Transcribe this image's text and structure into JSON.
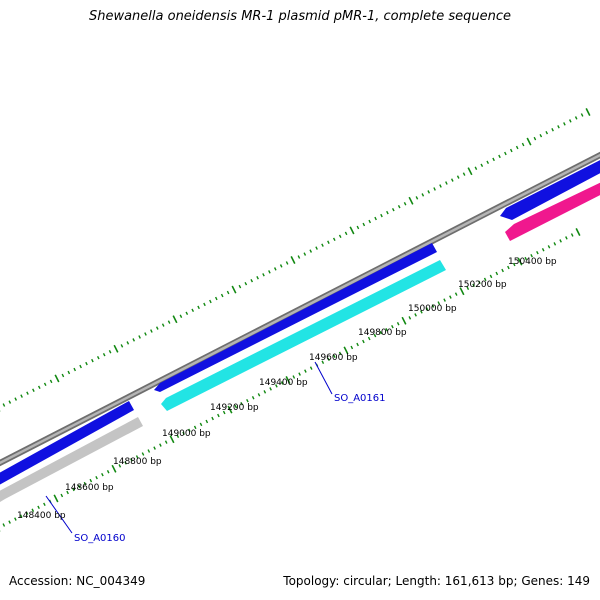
{
  "title": "Shewanella oneidensis MR-1 plasmid pMR-1, complete sequence",
  "footer": {
    "accession": "Accession: NC_004349",
    "stats": "Topology: circular; Length: 161,613 bp; Genes: 149"
  },
  "colors": {
    "backbone": "#8c8c8c",
    "forward_gene": "#1010e0",
    "reverse_gene_cyan": "#22e4e4",
    "reverse_gene_gray": "#c4c4c4",
    "reverse_gene_pink": "#f0188e",
    "tick": "#118811",
    "label": "#0000cc"
  },
  "tick_labels": [
    "148400 bp",
    "148600 bp",
    "148800 bp",
    "149000 bp",
    "149200 bp",
    "149400 bp",
    "149600 bp",
    "149800 bp",
    "150000 bp",
    "150200 bp",
    "150400 bp"
  ],
  "gene_labels": [
    {
      "text": "SO_A0160"
    },
    {
      "text": "SO_A0161"
    }
  ],
  "features": [
    {
      "strand": "forward",
      "color_key": "forward_gene"
    },
    {
      "strand": "reverse",
      "color_key": "reverse_gene_gray"
    },
    {
      "strand": "forward",
      "color_key": "forward_gene"
    },
    {
      "strand": "reverse",
      "color_key": "reverse_gene_cyan"
    },
    {
      "strand": "forward",
      "color_key": "forward_gene"
    },
    {
      "strand": "reverse",
      "color_key": "reverse_gene_pink"
    }
  ]
}
